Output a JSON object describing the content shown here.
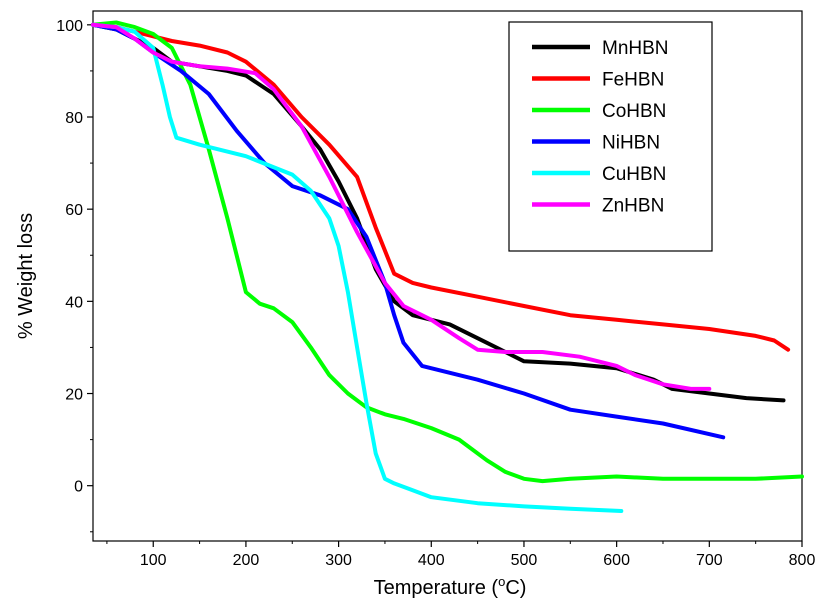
{
  "chart_data": {
    "type": "line",
    "xlabel": "Temperature (",
    "xlabel_degree": "o",
    "xlabel_unit": "C)",
    "ylabel": "% Weight loss",
    "xlim": [
      35,
      800
    ],
    "ylim": [
      -12,
      103
    ],
    "xticks": [
      100,
      200,
      300,
      400,
      500,
      600,
      700,
      800
    ],
    "yticks": [
      0,
      20,
      40,
      60,
      80,
      100
    ],
    "grid": false,
    "legend_position": "top-right",
    "series": [
      {
        "name": "MnHBN",
        "color": "#000000",
        "x": [
          35,
          60,
          80,
          100,
          120,
          150,
          180,
          200,
          230,
          260,
          280,
          300,
          320,
          340,
          360,
          380,
          400,
          420,
          450,
          480,
          500,
          550,
          600,
          640,
          660,
          700,
          740,
          780
        ],
        "y": [
          100,
          99,
          97,
          95,
          92,
          91,
          90,
          89,
          85,
          78,
          73,
          66,
          58,
          47,
          40,
          37,
          36,
          35,
          32,
          29,
          27,
          26.5,
          25.5,
          23,
          21,
          20,
          19,
          18.5
        ]
      },
      {
        "name": "FeHBN",
        "color": "#ff0000",
        "x": [
          35,
          60,
          80,
          100,
          120,
          150,
          180,
          200,
          230,
          260,
          290,
          320,
          340,
          360,
          380,
          400,
          450,
          500,
          550,
          600,
          650,
          700,
          750,
          770,
          785
        ],
        "y": [
          100,
          99.5,
          98.5,
          97.5,
          96.5,
          95.5,
          94,
          92,
          87,
          80,
          74,
          67,
          56,
          46,
          44,
          43,
          41,
          39,
          37,
          36,
          35,
          34,
          32.5,
          31.5,
          29.5
        ]
      },
      {
        "name": "CoHBN",
        "color": "#00ff00",
        "x": [
          35,
          60,
          80,
          100,
          120,
          140,
          160,
          180,
          200,
          215,
          230,
          250,
          270,
          290,
          310,
          330,
          350,
          370,
          400,
          430,
          460,
          480,
          500,
          520,
          550,
          600,
          650,
          700,
          750,
          800
        ],
        "y": [
          100,
          100.5,
          99.5,
          98,
          95,
          87,
          73,
          58,
          42,
          39.5,
          38.5,
          35.5,
          30,
          24,
          20,
          17,
          15.5,
          14.5,
          12.5,
          10,
          5.5,
          3,
          1.5,
          1,
          1.5,
          2,
          1.5,
          1.5,
          1.5,
          2
        ]
      },
      {
        "name": "NiHBN",
        "color": "#0000ff",
        "x": [
          35,
          60,
          80,
          100,
          130,
          160,
          190,
          220,
          250,
          280,
          310,
          330,
          350,
          360,
          370,
          390,
          420,
          450,
          500,
          550,
          600,
          650,
          715
        ],
        "y": [
          100,
          99,
          97,
          94,
          90,
          85,
          77,
          70,
          65,
          63,
          60,
          54,
          44,
          37,
          31,
          26,
          24.5,
          23,
          20,
          16.5,
          15,
          13.5,
          10.5
        ]
      },
      {
        "name": "CuHBN",
        "color": "#00ffff",
        "x": [
          35,
          60,
          80,
          100,
          110,
          118,
          125,
          150,
          200,
          250,
          270,
          290,
          300,
          310,
          320,
          330,
          340,
          350,
          360,
          380,
          400,
          450,
          500,
          550,
          605
        ],
        "y": [
          100,
          99.5,
          98.5,
          95,
          87,
          80,
          75.5,
          74,
          71.5,
          67.5,
          64,
          58,
          52,
          42,
          30,
          18,
          7,
          1.5,
          0.5,
          -1,
          -2.5,
          -3.8,
          -4.5,
          -5,
          -5.5
        ]
      },
      {
        "name": "ZnHBN",
        "color": "#ff00ff",
        "x": [
          35,
          60,
          80,
          100,
          120,
          150,
          180,
          210,
          230,
          260,
          290,
          320,
          350,
          370,
          400,
          430,
          450,
          480,
          520,
          560,
          600,
          620,
          650,
          680,
          700
        ],
        "y": [
          100,
          99.5,
          97,
          94,
          92,
          91,
          90.5,
          89.5,
          86,
          78,
          67,
          55,
          44,
          39,
          36,
          32,
          29.5,
          29,
          29,
          28,
          26,
          24,
          22,
          21,
          21
        ]
      }
    ]
  }
}
